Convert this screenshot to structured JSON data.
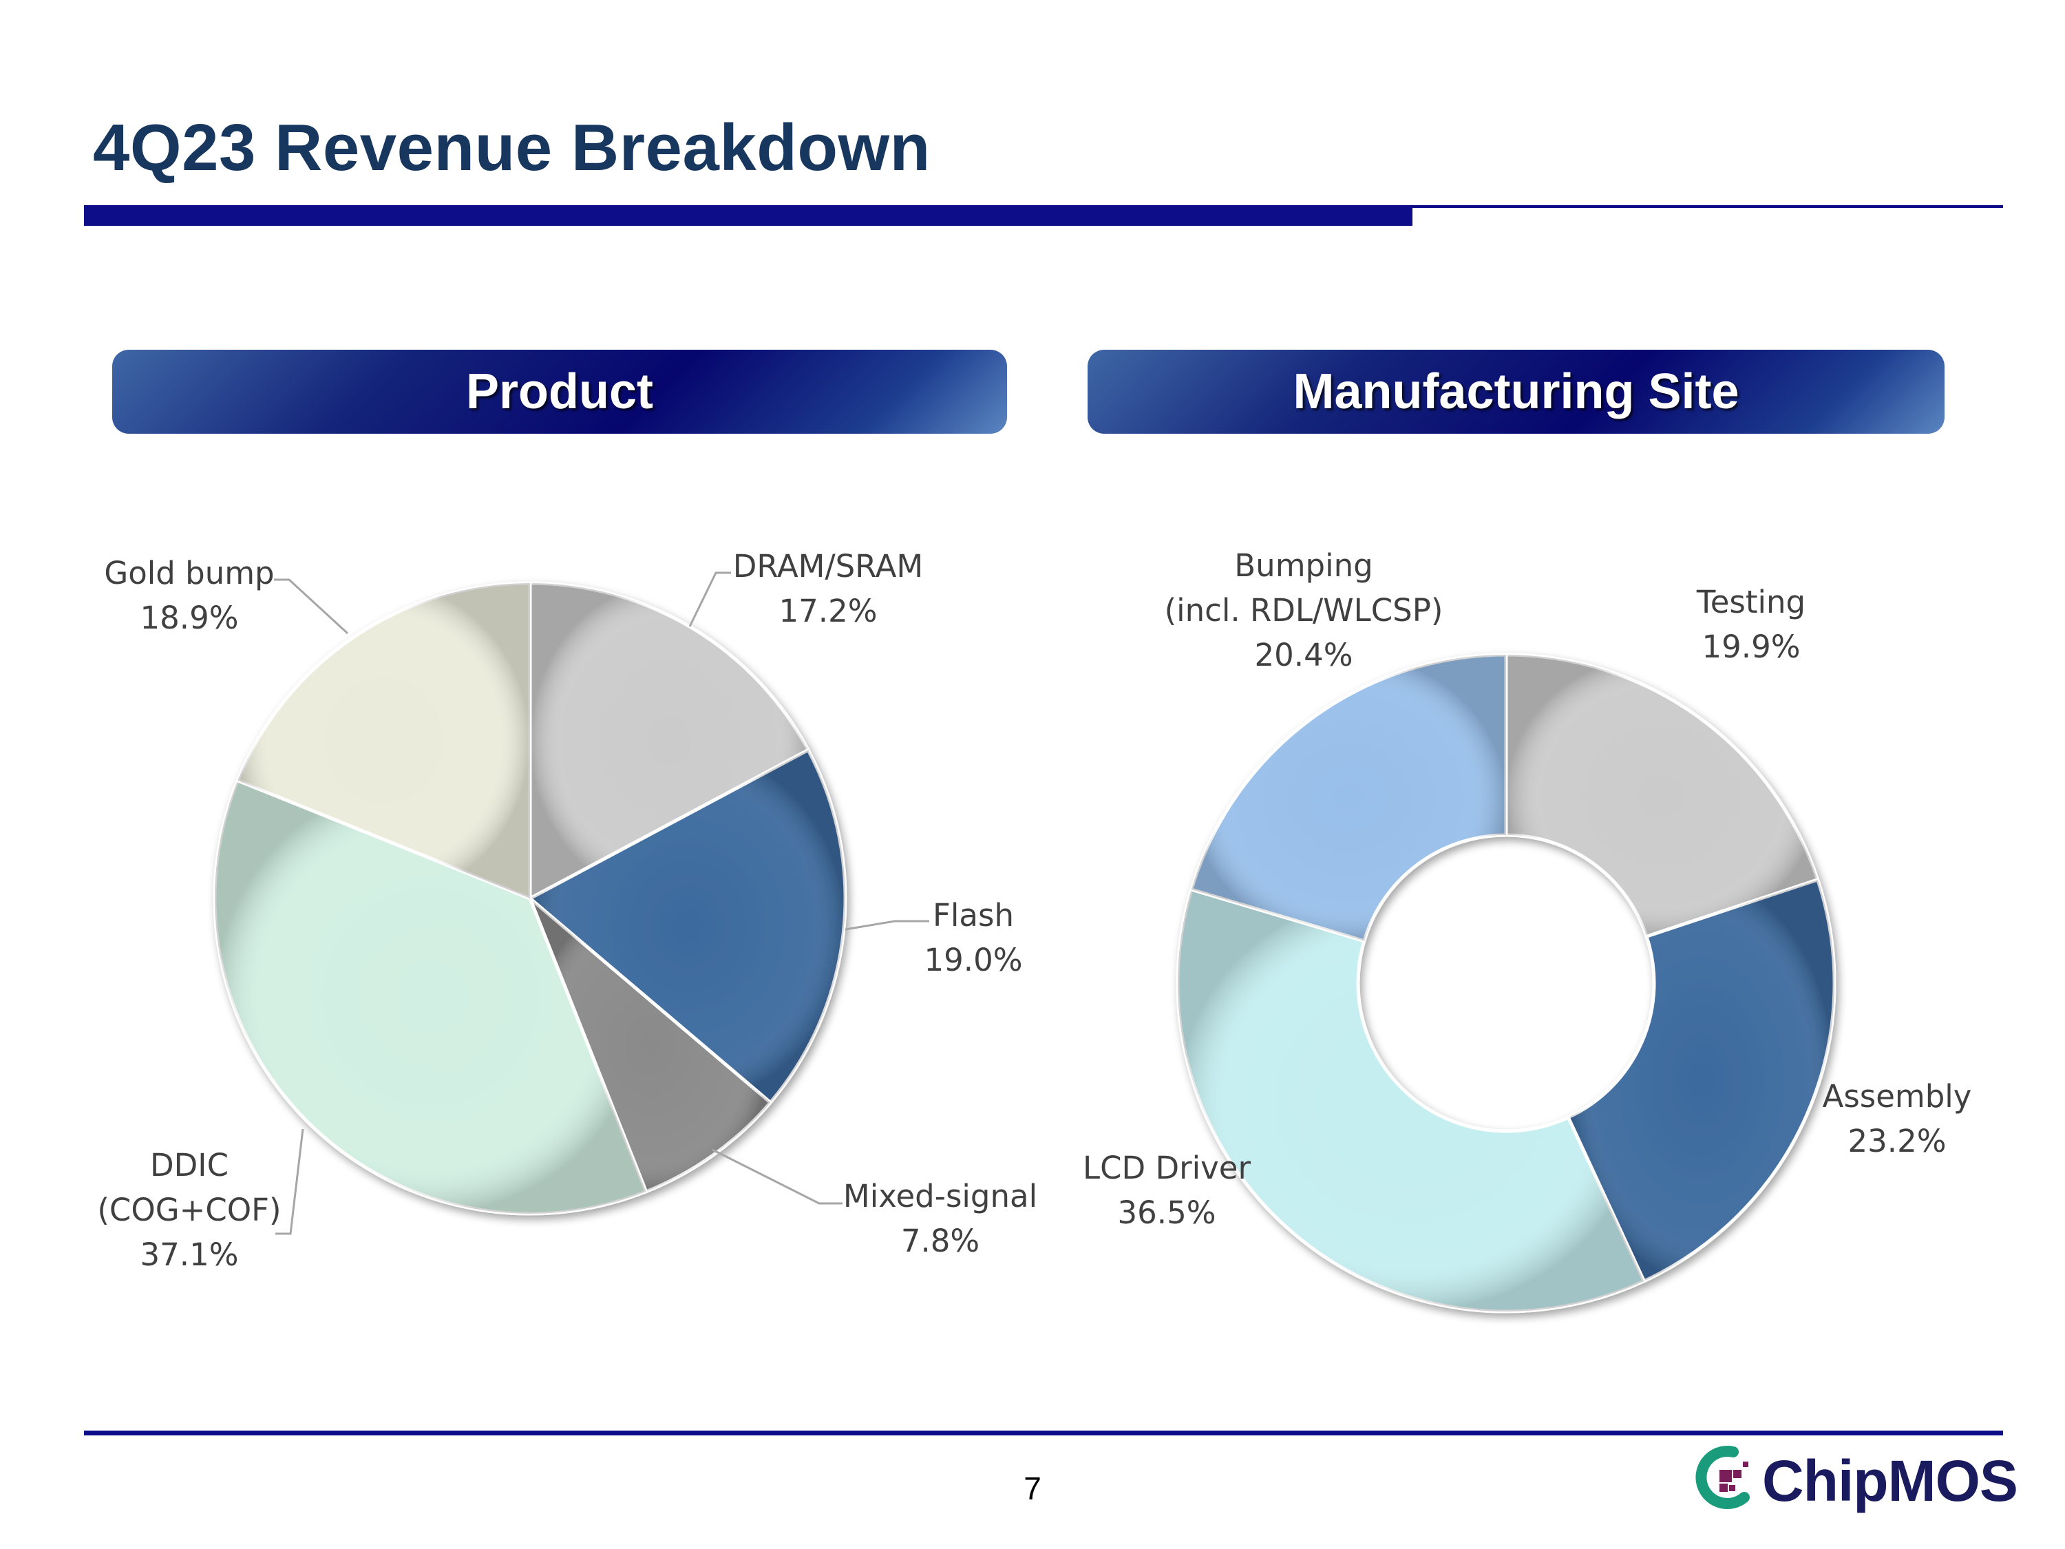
{
  "slide": {
    "title": "4Q23 Revenue Breakdown",
    "page_number": "7",
    "logo_text": "ChipMOS"
  },
  "sections": {
    "product": "Product",
    "site": "Manufacturing Site"
  },
  "colors": {
    "title": "#17375e",
    "rule": "#0d0d8a",
    "callout_text": "#404040",
    "leader_line": "#a6a6a6"
  },
  "chart_data": [
    {
      "type": "pie",
      "title": "Product",
      "unit": "%",
      "slices": [
        {
          "label": [
            "DRAM/SRAM"
          ],
          "value": 17.2,
          "display": "17.2%",
          "color": "#cbcbcb"
        },
        {
          "label": [
            "Flash"
          ],
          "value": 19.0,
          "display": "19.0%",
          "color": "#3c6a9e"
        },
        {
          "label": [
            "Mixed-signal"
          ],
          "value": 7.8,
          "display": "7.8%",
          "color": "#8a8a8a"
        },
        {
          "label": [
            "DDIC",
            "(COG+COF)"
          ],
          "value": 37.1,
          "display": "37.1%",
          "color": "#d1efe2"
        },
        {
          "label": [
            "Gold bump"
          ],
          "value": 18.9,
          "display": "18.9%",
          "color": "#ebebdb"
        }
      ]
    },
    {
      "type": "donut",
      "title": "Manufacturing Site",
      "unit": "%",
      "slices": [
        {
          "label": [
            "Testing"
          ],
          "value": 19.9,
          "display": "19.9%",
          "color": "#cbcbcb"
        },
        {
          "label": [
            "Assembly"
          ],
          "value": 23.2,
          "display": "23.2%",
          "color": "#3c6a9e"
        },
        {
          "label": [
            "LCD Driver"
          ],
          "value": 36.5,
          "display": "36.5%",
          "color": "#c4eef0"
        },
        {
          "label": [
            "Bumping",
            "(incl. RDL/WLCSP)"
          ],
          "value": 20.4,
          "display": "20.4%",
          "color": "#98bfea"
        }
      ]
    }
  ]
}
